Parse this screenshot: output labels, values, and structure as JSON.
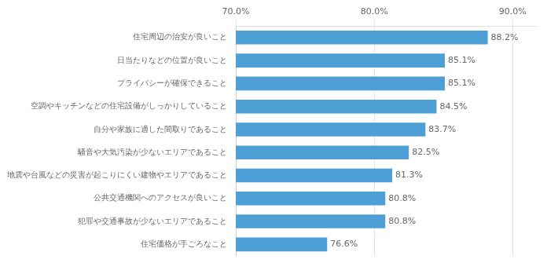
{
  "chart_data": {
    "type": "bar",
    "orientation": "horizontal",
    "categories": [
      "住宅価格が手ごろなこと",
      "犯罪や交通事故が少ないエリアであること",
      "公共交通機関へのアクセスが良いこと",
      "地震や台風などの災害が起こりにくい建物やエリアであること",
      "騒音や大気汚染が少ないエリアであること",
      "自分や家族に適した間取りであること",
      "空調やキッチンなどの住宅設備がしっかりしていること",
      "プライバシーが確保できること",
      "日当たりなどの位置が良いこと",
      "住宅周辺の治安が良いこと"
    ],
    "values": [
      76.6,
      80.8,
      80.8,
      81.3,
      82.5,
      83.7,
      84.5,
      85.1,
      85.1,
      88.2
    ],
    "value_labels": [
      "76.6%",
      "80.8%",
      "80.8%",
      "81.3%",
      "82.5%",
      "83.7%",
      "84.5%",
      "85.1%",
      "85.1%",
      "88.2%"
    ],
    "data_labels": true,
    "color": "#4d9fd6",
    "xlim": [
      70,
      91.8
    ],
    "xticks": [
      {
        "value": 70,
        "label": "70.0%"
      },
      {
        "value": 80,
        "label": "80.0%"
      },
      {
        "value": 90,
        "label": "90.0%"
      }
    ],
    "grid": true
  }
}
